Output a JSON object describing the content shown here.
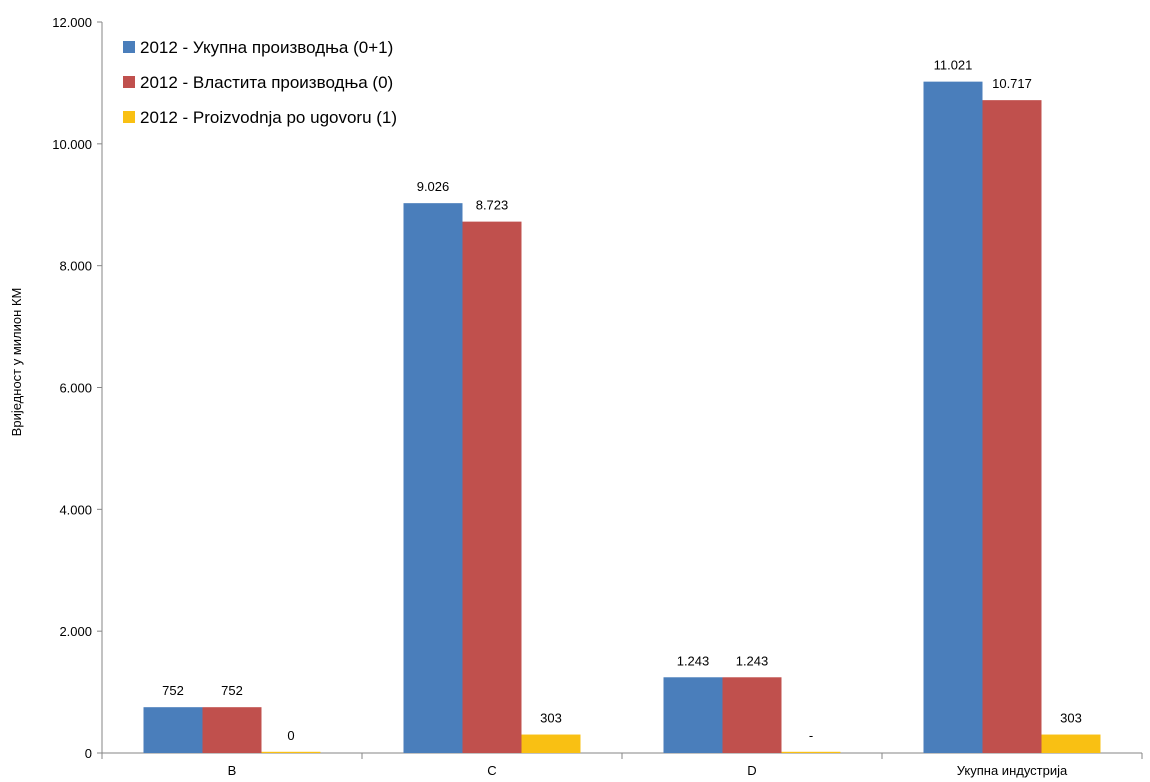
{
  "chart_data": {
    "type": "bar",
    "ylabel": "Вриједност у милион КМ",
    "xlabel": "",
    "ylim": [
      0,
      12000
    ],
    "y_ticks": [
      0,
      2000,
      4000,
      6000,
      8000,
      10000,
      12000
    ],
    "y_tick_labels": [
      "0",
      "2.000",
      "4.000",
      "6.000",
      "8.000",
      "10.000",
      "12.000"
    ],
    "categories": [
      "B",
      "C",
      "D",
      "Укупна индустрија"
    ],
    "grid": false,
    "legend_position": "top-left",
    "series": [
      {
        "name": "2012 - Укупна производња (0+1)",
        "color": "#4a7ebb",
        "values": [
          752,
          9026,
          1243,
          11021
        ],
        "labels": [
          "752",
          "9.026",
          "1.243",
          "11.021"
        ]
      },
      {
        "name": "2012 - Властита производња (0)",
        "color": "#c0504d",
        "values": [
          752,
          8723,
          1243,
          10717
        ],
        "labels": [
          "752",
          "8.723",
          "1.243",
          "10.717"
        ]
      },
      {
        "name": "2012 - Proizvodnja po ugovoru (1)",
        "color": "#f9c013",
        "values": [
          0,
          303,
          0,
          303
        ],
        "labels": [
          "0",
          "303",
          "-",
          "303"
        ]
      }
    ]
  }
}
